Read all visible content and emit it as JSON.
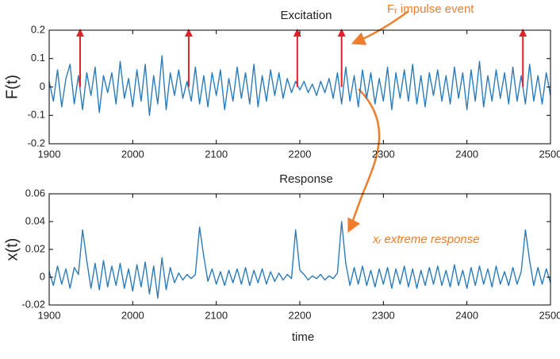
{
  "chart_data": [
    {
      "type": "line",
      "title": "Excitation",
      "y_label": "F(t)",
      "color": "#2b7bba",
      "x": [
        1900,
        1905,
        1910,
        1915,
        1920,
        1925,
        1930,
        1935,
        1940,
        1945,
        1950,
        1955,
        1960,
        1965,
        1970,
        1975,
        1980,
        1985,
        1990,
        1995,
        2000,
        2005,
        2010,
        2015,
        2020,
        2025,
        2030,
        2035,
        2040,
        2045,
        2050,
        2055,
        2060,
        2065,
        2070,
        2075,
        2080,
        2085,
        2090,
        2095,
        2100,
        2105,
        2110,
        2115,
        2120,
        2125,
        2130,
        2135,
        2140,
        2145,
        2150,
        2155,
        2160,
        2165,
        2170,
        2175,
        2180,
        2185,
        2190,
        2195,
        2200,
        2205,
        2210,
        2215,
        2220,
        2225,
        2230,
        2235,
        2240,
        2245,
        2250,
        2255,
        2260,
        2265,
        2270,
        2275,
        2280,
        2285,
        2290,
        2295,
        2300,
        2305,
        2310,
        2315,
        2320,
        2325,
        2330,
        2335,
        2340,
        2345,
        2350,
        2355,
        2360,
        2365,
        2370,
        2375,
        2380,
        2385,
        2390,
        2395,
        2400,
        2405,
        2410,
        2415,
        2420,
        2425,
        2430,
        2435,
        2440,
        2445,
        2450,
        2455,
        2460,
        2465,
        2470,
        2475,
        2480,
        2485,
        2490,
        2495,
        2500
      ],
      "values": [
        0.02,
        -0.05,
        0.06,
        -0.07,
        0.03,
        0.08,
        -0.06,
        0.04,
        -0.08,
        0.05,
        -0.03,
        0.07,
        -0.09,
        0.04,
        -0.02,
        0.05,
        -0.06,
        0.09,
        -0.04,
        0.03,
        -0.07,
        0.06,
        -0.05,
        0.08,
        -0.1,
        0.04,
        -0.06,
        0.11,
        -0.08,
        0.05,
        -0.03,
        0.06,
        -0.04,
        0.02,
        -0.05,
        0.07,
        -0.06,
        0.04,
        -0.07,
        0.05,
        -0.03,
        0.06,
        -0.08,
        0.03,
        -0.05,
        0.07,
        -0.04,
        0.05,
        -0.06,
        0.08,
        -0.07,
        0.04,
        -0.05,
        0.06,
        -0.03,
        0.05,
        -0.04,
        0.03,
        -0.02,
        0.02,
        -0.01,
        0.02,
        -0.02,
        0.01,
        -0.03,
        0.02,
        -0.02,
        0.03,
        -0.04,
        0.05,
        -0.06,
        0.07,
        -0.05,
        0.04,
        -0.07,
        0.06,
        -0.04,
        0.05,
        -0.06,
        0.03,
        -0.05,
        0.07,
        -0.08,
        0.05,
        -0.04,
        0.06,
        -0.05,
        0.08,
        -0.06,
        0.04,
        -0.07,
        0.05,
        -0.03,
        0.06,
        -0.05,
        0.04,
        -0.06,
        0.07,
        -0.04,
        0.05,
        -0.08,
        0.06,
        -0.05,
        0.09,
        -0.07,
        0.04,
        -0.05,
        0.06,
        -0.04,
        0.05,
        -0.06,
        0.07,
        -0.05,
        0.04,
        -0.06,
        0.08,
        -0.05,
        0.04,
        -0.06,
        0.05,
        -0.03
      ],
      "impulses": {
        "x": [
          1937,
          2067,
          2197,
          2250,
          2467
        ],
        "values": [
          0.2,
          0.2,
          0.2,
          0.2,
          0.2
        ],
        "color": "#e0202a"
      },
      "annotation": "Fᵣ impulse event",
      "xlim": [
        1900,
        2500
      ],
      "xticks": [
        1900,
        2000,
        2100,
        2200,
        2300,
        2400,
        2500
      ],
      "ylim": [
        -0.2,
        0.2
      ],
      "yticks": [
        -0.2,
        -0.1,
        0,
        0.1,
        0.2
      ]
    },
    {
      "type": "line",
      "title": "Response",
      "y_label": "x(t)",
      "x_label": "time",
      "color": "#2b7bba",
      "x": [
        1900,
        1905,
        1910,
        1915,
        1920,
        1925,
        1930,
        1935,
        1940,
        1945,
        1950,
        1955,
        1960,
        1965,
        1970,
        1975,
        1980,
        1985,
        1990,
        1995,
        2000,
        2005,
        2010,
        2015,
        2020,
        2025,
        2030,
        2035,
        2040,
        2045,
        2050,
        2055,
        2060,
        2065,
        2070,
        2075,
        2080,
        2085,
        2090,
        2095,
        2100,
        2105,
        2110,
        2115,
        2120,
        2125,
        2130,
        2135,
        2140,
        2145,
        2150,
        2155,
        2160,
        2165,
        2170,
        2175,
        2180,
        2185,
        2190,
        2195,
        2200,
        2205,
        2210,
        2215,
        2220,
        2225,
        2230,
        2235,
        2240,
        2245,
        2250,
        2255,
        2260,
        2265,
        2270,
        2275,
        2280,
        2285,
        2290,
        2295,
        2300,
        2305,
        2310,
        2315,
        2320,
        2325,
        2330,
        2335,
        2340,
        2345,
        2350,
        2355,
        2360,
        2365,
        2370,
        2375,
        2380,
        2385,
        2390,
        2395,
        2400,
        2405,
        2410,
        2415,
        2420,
        2425,
        2430,
        2435,
        2440,
        2445,
        2450,
        2455,
        2460,
        2465,
        2470,
        2475,
        2480,
        2485,
        2490,
        2495,
        2500
      ],
      "values": [
        0.004,
        -0.006,
        0.008,
        -0.005,
        0.006,
        -0.008,
        0.007,
        0.002,
        0.034,
        0.012,
        -0.008,
        0.01,
        -0.009,
        0.012,
        -0.007,
        0.008,
        -0.006,
        0.01,
        -0.008,
        0.006,
        -0.01,
        0.009,
        -0.007,
        0.011,
        -0.012,
        0.008,
        -0.015,
        0.014,
        -0.009,
        0.007,
        -0.004,
        0.003,
        -0.002,
        0.002,
        -0.001,
        0.002,
        0.036,
        0.015,
        -0.003,
        0.006,
        -0.005,
        0.004,
        -0.006,
        0.005,
        -0.004,
        0.006,
        -0.005,
        0.007,
        -0.006,
        0.005,
        -0.004,
        0.006,
        -0.005,
        0.004,
        -0.003,
        0.003,
        -0.002,
        0.002,
        -0.001,
        0.034,
        0.005,
        0.002,
        -0.002,
        0.001,
        -0.001,
        0.002,
        -0.002,
        0.001,
        -0.001,
        0.003,
        0.04,
        0.01,
        -0.006,
        0.007,
        -0.005,
        0.008,
        -0.006,
        0.005,
        -0.007,
        0.006,
        -0.005,
        0.007,
        -0.008,
        0.006,
        -0.005,
        0.008,
        -0.007,
        0.006,
        -0.008,
        0.005,
        -0.006,
        0.007,
        -0.005,
        0.008,
        -0.006,
        0.005,
        -0.007,
        0.009,
        -0.006,
        0.005,
        -0.008,
        0.007,
        -0.006,
        0.008,
        -0.005,
        0.006,
        -0.007,
        0.008,
        -0.005,
        0.004,
        -0.006,
        0.007,
        -0.005,
        0.004,
        0.034,
        0.012,
        -0.006,
        0.007,
        -0.005,
        0.006,
        -0.004
      ],
      "annotation": "xᵣ extreme response",
      "xlim": [
        1900,
        2500
      ],
      "xticks": [
        1900,
        2000,
        2100,
        2200,
        2300,
        2400,
        2500
      ],
      "ylim": [
        -0.02,
        0.06
      ],
      "yticks": [
        -0.02,
        0,
        0.02,
        0.04,
        0.06
      ]
    }
  ]
}
